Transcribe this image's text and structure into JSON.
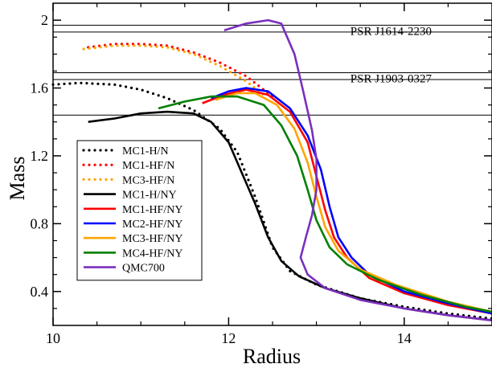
{
  "chart_data": {
    "type": "line",
    "title": "",
    "xlabel": "Radius",
    "ylabel": "Mass",
    "xlim": [
      10,
      15
    ],
    "ylim": [
      0.2,
      2.1
    ],
    "xticks": [
      {
        "v": 10,
        "label": "10"
      },
      {
        "v": 12,
        "label": "12"
      },
      {
        "v": 14,
        "label": "14"
      }
    ],
    "yticks": [
      {
        "v": 0.4,
        "label": "0.4"
      },
      {
        "v": 0.8,
        "label": "0.8"
      },
      {
        "v": 1.2,
        "label": "1.2"
      },
      {
        "v": 1.6,
        "label": "1.6"
      },
      {
        "v": 2.0,
        "label": "2"
      }
    ],
    "grid": false,
    "legend_position": "lower-left",
    "reference_lines": [
      {
        "label": "PSR J1614-2230",
        "values": [
          1.97,
          1.93
        ]
      },
      {
        "label": "PSR J1903-0327",
        "values": [
          1.69,
          1.65
        ]
      },
      {
        "label": "",
        "values": [
          1.44
        ]
      }
    ],
    "series": [
      {
        "name": "MC1-H/N",
        "color": "#000000",
        "style": "dotted",
        "points": [
          [
            10.0,
            1.62
          ],
          [
            10.3,
            1.63
          ],
          [
            10.7,
            1.62
          ],
          [
            11.0,
            1.59
          ],
          [
            11.3,
            1.54
          ],
          [
            11.6,
            1.47
          ],
          [
            11.9,
            1.36
          ],
          [
            12.1,
            1.22
          ],
          [
            12.3,
            0.96
          ],
          [
            12.5,
            0.66
          ],
          [
            12.7,
            0.52
          ],
          [
            13.0,
            0.44
          ],
          [
            13.5,
            0.36
          ],
          [
            14.0,
            0.31
          ],
          [
            14.5,
            0.27
          ],
          [
            15.0,
            0.24
          ]
        ]
      },
      {
        "name": "MC1-HF/N",
        "color": "#ff0000",
        "style": "dotted",
        "points": [
          [
            10.4,
            1.84
          ],
          [
            10.7,
            1.86
          ],
          [
            11.0,
            1.86
          ],
          [
            11.3,
            1.85
          ],
          [
            11.6,
            1.81
          ],
          [
            11.9,
            1.75
          ],
          [
            12.2,
            1.67
          ],
          [
            12.5,
            1.55
          ]
        ]
      },
      {
        "name": "MC3-HF/N",
        "color": "#ffa500",
        "style": "dotted",
        "points": [
          [
            10.35,
            1.83
          ],
          [
            10.7,
            1.85
          ],
          [
            11.0,
            1.85
          ],
          [
            11.3,
            1.84
          ],
          [
            11.6,
            1.8
          ],
          [
            11.9,
            1.73
          ],
          [
            12.2,
            1.64
          ],
          [
            12.4,
            1.56
          ]
        ]
      },
      {
        "name": "MC1-H/NY",
        "color": "#000000",
        "style": "solid",
        "points": [
          [
            10.4,
            1.4
          ],
          [
            10.7,
            1.42
          ],
          [
            11.0,
            1.45
          ],
          [
            11.3,
            1.46
          ],
          [
            11.6,
            1.45
          ],
          [
            11.8,
            1.4
          ],
          [
            12.0,
            1.28
          ],
          [
            12.15,
            1.1
          ],
          [
            12.3,
            0.92
          ],
          [
            12.45,
            0.72
          ],
          [
            12.6,
            0.58
          ],
          [
            12.8,
            0.49
          ],
          [
            13.1,
            0.42
          ],
          [
            13.5,
            0.36
          ],
          [
            14.0,
            0.3
          ],
          [
            14.5,
            0.26
          ],
          [
            15.0,
            0.23
          ]
        ]
      },
      {
        "name": "MC1-HF/NY",
        "color": "#ff0000",
        "style": "solid",
        "points": [
          [
            11.7,
            1.51
          ],
          [
            11.95,
            1.56
          ],
          [
            12.2,
            1.59
          ],
          [
            12.45,
            1.56
          ],
          [
            12.7,
            1.46
          ],
          [
            12.9,
            1.28
          ],
          [
            13.0,
            1.08
          ],
          [
            13.1,
            0.88
          ],
          [
            13.2,
            0.72
          ],
          [
            13.35,
            0.6
          ],
          [
            13.6,
            0.48
          ],
          [
            14.0,
            0.39
          ],
          [
            14.5,
            0.32
          ],
          [
            15.0,
            0.27
          ]
        ]
      },
      {
        "name": "MC2-HF/NY",
        "color": "#0000ff",
        "style": "solid",
        "points": [
          [
            11.8,
            1.54
          ],
          [
            12.0,
            1.58
          ],
          [
            12.2,
            1.6
          ],
          [
            12.45,
            1.58
          ],
          [
            12.7,
            1.48
          ],
          [
            12.9,
            1.32
          ],
          [
            13.05,
            1.12
          ],
          [
            13.15,
            0.9
          ],
          [
            13.25,
            0.72
          ],
          [
            13.4,
            0.6
          ],
          [
            13.6,
            0.5
          ],
          [
            14.0,
            0.4
          ],
          [
            14.5,
            0.33
          ],
          [
            15.0,
            0.27
          ]
        ]
      },
      {
        "name": "MC3-HF/NY",
        "color": "#ffa500",
        "style": "solid",
        "points": [
          [
            11.85,
            1.53
          ],
          [
            12.1,
            1.57
          ],
          [
            12.3,
            1.57
          ],
          [
            12.55,
            1.5
          ],
          [
            12.75,
            1.36
          ],
          [
            12.9,
            1.16
          ],
          [
            13.0,
            0.96
          ],
          [
            13.1,
            0.78
          ],
          [
            13.25,
            0.64
          ],
          [
            13.5,
            0.53
          ],
          [
            13.9,
            0.44
          ],
          [
            14.5,
            0.34
          ],
          [
            15.0,
            0.28
          ]
        ]
      },
      {
        "name": "MC4-HF/NY",
        "color": "#008000",
        "style": "solid",
        "points": [
          [
            11.2,
            1.48
          ],
          [
            11.5,
            1.52
          ],
          [
            11.8,
            1.55
          ],
          [
            12.1,
            1.55
          ],
          [
            12.4,
            1.5
          ],
          [
            12.6,
            1.38
          ],
          [
            12.78,
            1.2
          ],
          [
            12.9,
            1.0
          ],
          [
            13.0,
            0.82
          ],
          [
            13.15,
            0.66
          ],
          [
            13.35,
            0.56
          ],
          [
            13.7,
            0.47
          ],
          [
            14.2,
            0.38
          ],
          [
            14.7,
            0.31
          ],
          [
            15.0,
            0.28
          ]
        ]
      },
      {
        "name": "QMC700",
        "color": "#7b2fbe",
        "style": "solid",
        "points": [
          [
            11.95,
            1.94
          ],
          [
            12.2,
            1.98
          ],
          [
            12.45,
            2.0
          ],
          [
            12.6,
            1.98
          ],
          [
            12.75,
            1.8
          ],
          [
            12.85,
            1.58
          ],
          [
            12.95,
            1.35
          ],
          [
            13.0,
            1.18
          ],
          [
            13.0,
            1.0
          ],
          [
            12.95,
            0.85
          ],
          [
            12.88,
            0.72
          ],
          [
            12.82,
            0.6
          ],
          [
            12.9,
            0.5
          ],
          [
            13.1,
            0.42
          ],
          [
            13.5,
            0.35
          ],
          [
            14.0,
            0.3
          ],
          [
            14.5,
            0.26
          ],
          [
            15.0,
            0.23
          ]
        ]
      }
    ]
  }
}
